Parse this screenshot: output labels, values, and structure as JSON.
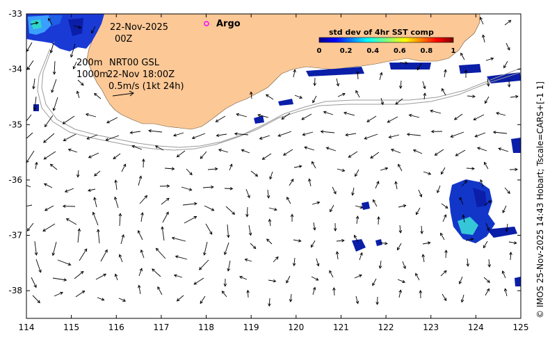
{
  "map": {
    "date_line": "22-Nov-2025",
    "hour_line": "00Z",
    "depth_line_1": "200m",
    "depth_line_2": "1000m",
    "product": "NRT00 GSL",
    "time_label": "22-Nov 18:00Z",
    "scale_label": "0.5m/s (1kt 24h)",
    "argo_label": "Argo",
    "side_label": "© IMOS 25-Nov-2025 14:43 Hobart; Tscale=CARS+[-1 1]",
    "land_color": "#fcc896",
    "argo_color": "#ff00ff"
  },
  "colorbar": {
    "title": "std dev of 4hr SST comp",
    "ticks": [
      "0",
      "0.2",
      "0.4",
      "0.6",
      "0.8",
      "1"
    ]
  },
  "axes": {
    "lon_range": [
      114,
      125
    ],
    "lat_range": [
      -38.5,
      -33
    ],
    "x_ticks": [
      "114",
      "115",
      "116",
      "117",
      "118",
      "119",
      "120",
      "121",
      "122",
      "123",
      "124",
      "125"
    ],
    "y_ticks": [
      "-33",
      "-34",
      "-35",
      "-36",
      "-37",
      "-38"
    ]
  }
}
